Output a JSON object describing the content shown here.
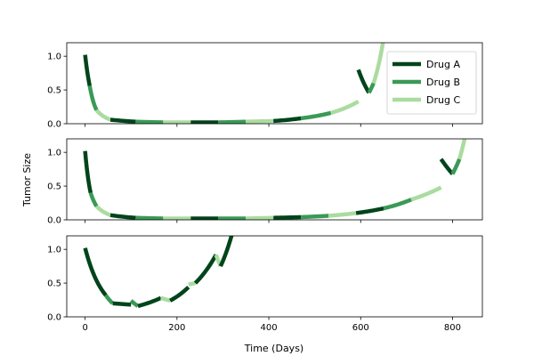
{
  "chart_data": {
    "type": "line",
    "xlabel": "Time (Days)",
    "ylabel": "Tumor Size",
    "xlim": [
      -40,
      865
    ],
    "ylim": [
      0,
      1.2
    ],
    "x_ticks": [
      0,
      200,
      400,
      600,
      800
    ],
    "y_ticks": [
      0.0,
      0.5,
      1.0
    ],
    "x_tick_labels": [
      "0",
      "200",
      "400",
      "600",
      "800"
    ],
    "y_tick_labels": [
      "0.0",
      "0.5",
      "1.0"
    ],
    "grid": false,
    "legend": {
      "placement": "top-right",
      "entries": [
        {
          "name": "Drug A",
          "color": "#00441b"
        },
        {
          "name": "Drug B",
          "color": "#3a9a55"
        },
        {
          "name": "Drug C",
          "color": "#aadc9f"
        }
      ]
    },
    "panels": [
      {
        "name": "panel-1",
        "legend": true,
        "decay_rate": 0.06,
        "segments": [
          {
            "drug": "Drug A",
            "t0": 0,
            "t1": 10,
            "y0": 1.02,
            "y1": 0.56
          },
          {
            "drug": "Drug B",
            "t0": 10,
            "t1": 25,
            "y0": 0.56,
            "y1": 0.2
          },
          {
            "drug": "Drug C",
            "t0": 25,
            "t1": 55,
            "y0": 0.2,
            "y1": 0.06
          },
          {
            "drug": "Drug A",
            "t0": 55,
            "t1": 110,
            "y0": 0.06,
            "y1": 0.03
          },
          {
            "drug": "Drug B",
            "t0": 110,
            "t1": 170,
            "y0": 0.03,
            "y1": 0.02
          },
          {
            "drug": "Drug C",
            "t0": 170,
            "t1": 230,
            "y0": 0.02,
            "y1": 0.02
          },
          {
            "drug": "Drug A",
            "t0": 230,
            "t1": 290,
            "y0": 0.02,
            "y1": 0.02
          },
          {
            "drug": "Drug B",
            "t0": 290,
            "t1": 350,
            "y0": 0.02,
            "y1": 0.03
          },
          {
            "drug": "Drug C",
            "t0": 350,
            "t1": 410,
            "y0": 0.03,
            "y1": 0.04
          },
          {
            "drug": "Drug A",
            "t0": 410,
            "t1": 470,
            "y0": 0.04,
            "y1": 0.08
          },
          {
            "drug": "Drug B",
            "t0": 470,
            "t1": 535,
            "y0": 0.08,
            "y1": 0.16
          },
          {
            "drug": "Drug C",
            "t0": 535,
            "t1": 595,
            "y0": 0.16,
            "y1": 0.33
          },
          {
            "drug": "Drug A",
            "t0": 595,
            "t1": 618,
            "y0": 0.8,
            "y1": 0.46
          },
          {
            "drug": "Drug B",
            "t0": 618,
            "t1": 628,
            "y0": 0.46,
            "y1": 0.6
          },
          {
            "drug": "Drug C",
            "t0": 628,
            "t1": 655,
            "y0": 0.6,
            "y1": 1.5
          }
        ]
      },
      {
        "name": "panel-2",
        "legend": false,
        "decay_rate": 0.06,
        "segments": [
          {
            "drug": "Drug A",
            "t0": 0,
            "t1": 12,
            "y0": 1.02,
            "y1": 0.4
          },
          {
            "drug": "Drug B",
            "t0": 12,
            "t1": 25,
            "y0": 0.4,
            "y1": 0.2
          },
          {
            "drug": "Drug C",
            "t0": 25,
            "t1": 55,
            "y0": 0.2,
            "y1": 0.07
          },
          {
            "drug": "Drug A",
            "t0": 55,
            "t1": 110,
            "y0": 0.07,
            "y1": 0.03
          },
          {
            "drug": "Drug B",
            "t0": 110,
            "t1": 170,
            "y0": 0.03,
            "y1": 0.02
          },
          {
            "drug": "Drug C",
            "t0": 170,
            "t1": 230,
            "y0": 0.02,
            "y1": 0.02
          },
          {
            "drug": "Drug A",
            "t0": 230,
            "t1": 290,
            "y0": 0.02,
            "y1": 0.02
          },
          {
            "drug": "Drug B",
            "t0": 290,
            "t1": 350,
            "y0": 0.02,
            "y1": 0.02
          },
          {
            "drug": "Drug C",
            "t0": 350,
            "t1": 410,
            "y0": 0.02,
            "y1": 0.03
          },
          {
            "drug": "Drug A",
            "t0": 410,
            "t1": 470,
            "y0": 0.03,
            "y1": 0.04
          },
          {
            "drug": "Drug B",
            "t0": 470,
            "t1": 530,
            "y0": 0.04,
            "y1": 0.06
          },
          {
            "drug": "Drug C",
            "t0": 530,
            "t1": 590,
            "y0": 0.06,
            "y1": 0.1
          },
          {
            "drug": "Drug A",
            "t0": 590,
            "t1": 650,
            "y0": 0.1,
            "y1": 0.17
          },
          {
            "drug": "Drug B",
            "t0": 650,
            "t1": 710,
            "y0": 0.17,
            "y1": 0.3
          },
          {
            "drug": "Drug C",
            "t0": 710,
            "t1": 775,
            "y0": 0.3,
            "y1": 0.48
          },
          {
            "drug": "Drug A",
            "t0": 775,
            "t1": 800,
            "y0": 0.9,
            "y1": 0.68
          },
          {
            "drug": "Drug B",
            "t0": 800,
            "t1": 815,
            "y0": 0.68,
            "y1": 0.9
          },
          {
            "drug": "Drug C",
            "t0": 815,
            "t1": 835,
            "y0": 0.9,
            "y1": 1.5
          }
        ]
      },
      {
        "name": "panel-3",
        "legend": false,
        "decay_rate": 0.06,
        "segments": [
          {
            "drug": "Drug A",
            "t0": 0,
            "t1": 45,
            "y0": 1.02,
            "y1": 0.32
          },
          {
            "drug": "Drug B",
            "t0": 45,
            "t1": 60,
            "y0": 0.32,
            "y1": 0.2
          },
          {
            "drug": "Drug A",
            "t0": 60,
            "t1": 100,
            "y0": 0.2,
            "y1": 0.18
          },
          {
            "drug": "Drug B",
            "t0": 100,
            "t1": 115,
            "y0": 0.24,
            "y1": 0.16
          },
          {
            "drug": "Drug A",
            "t0": 115,
            "t1": 165,
            "y0": 0.16,
            "y1": 0.28
          },
          {
            "drug": "Drug C",
            "t0": 165,
            "t1": 185,
            "y0": 0.28,
            "y1": 0.24
          },
          {
            "drug": "Drug A",
            "t0": 185,
            "t1": 225,
            "y0": 0.24,
            "y1": 0.44
          },
          {
            "drug": "Drug C",
            "t0": 225,
            "t1": 240,
            "y0": 0.48,
            "y1": 0.5
          },
          {
            "drug": "Drug A",
            "t0": 240,
            "t1": 285,
            "y0": 0.5,
            "y1": 0.92
          },
          {
            "drug": "Drug C",
            "t0": 285,
            "t1": 295,
            "y0": 0.92,
            "y1": 0.75
          },
          {
            "drug": "Drug A",
            "t0": 295,
            "t1": 330,
            "y0": 0.75,
            "y1": 1.5
          }
        ]
      }
    ]
  }
}
